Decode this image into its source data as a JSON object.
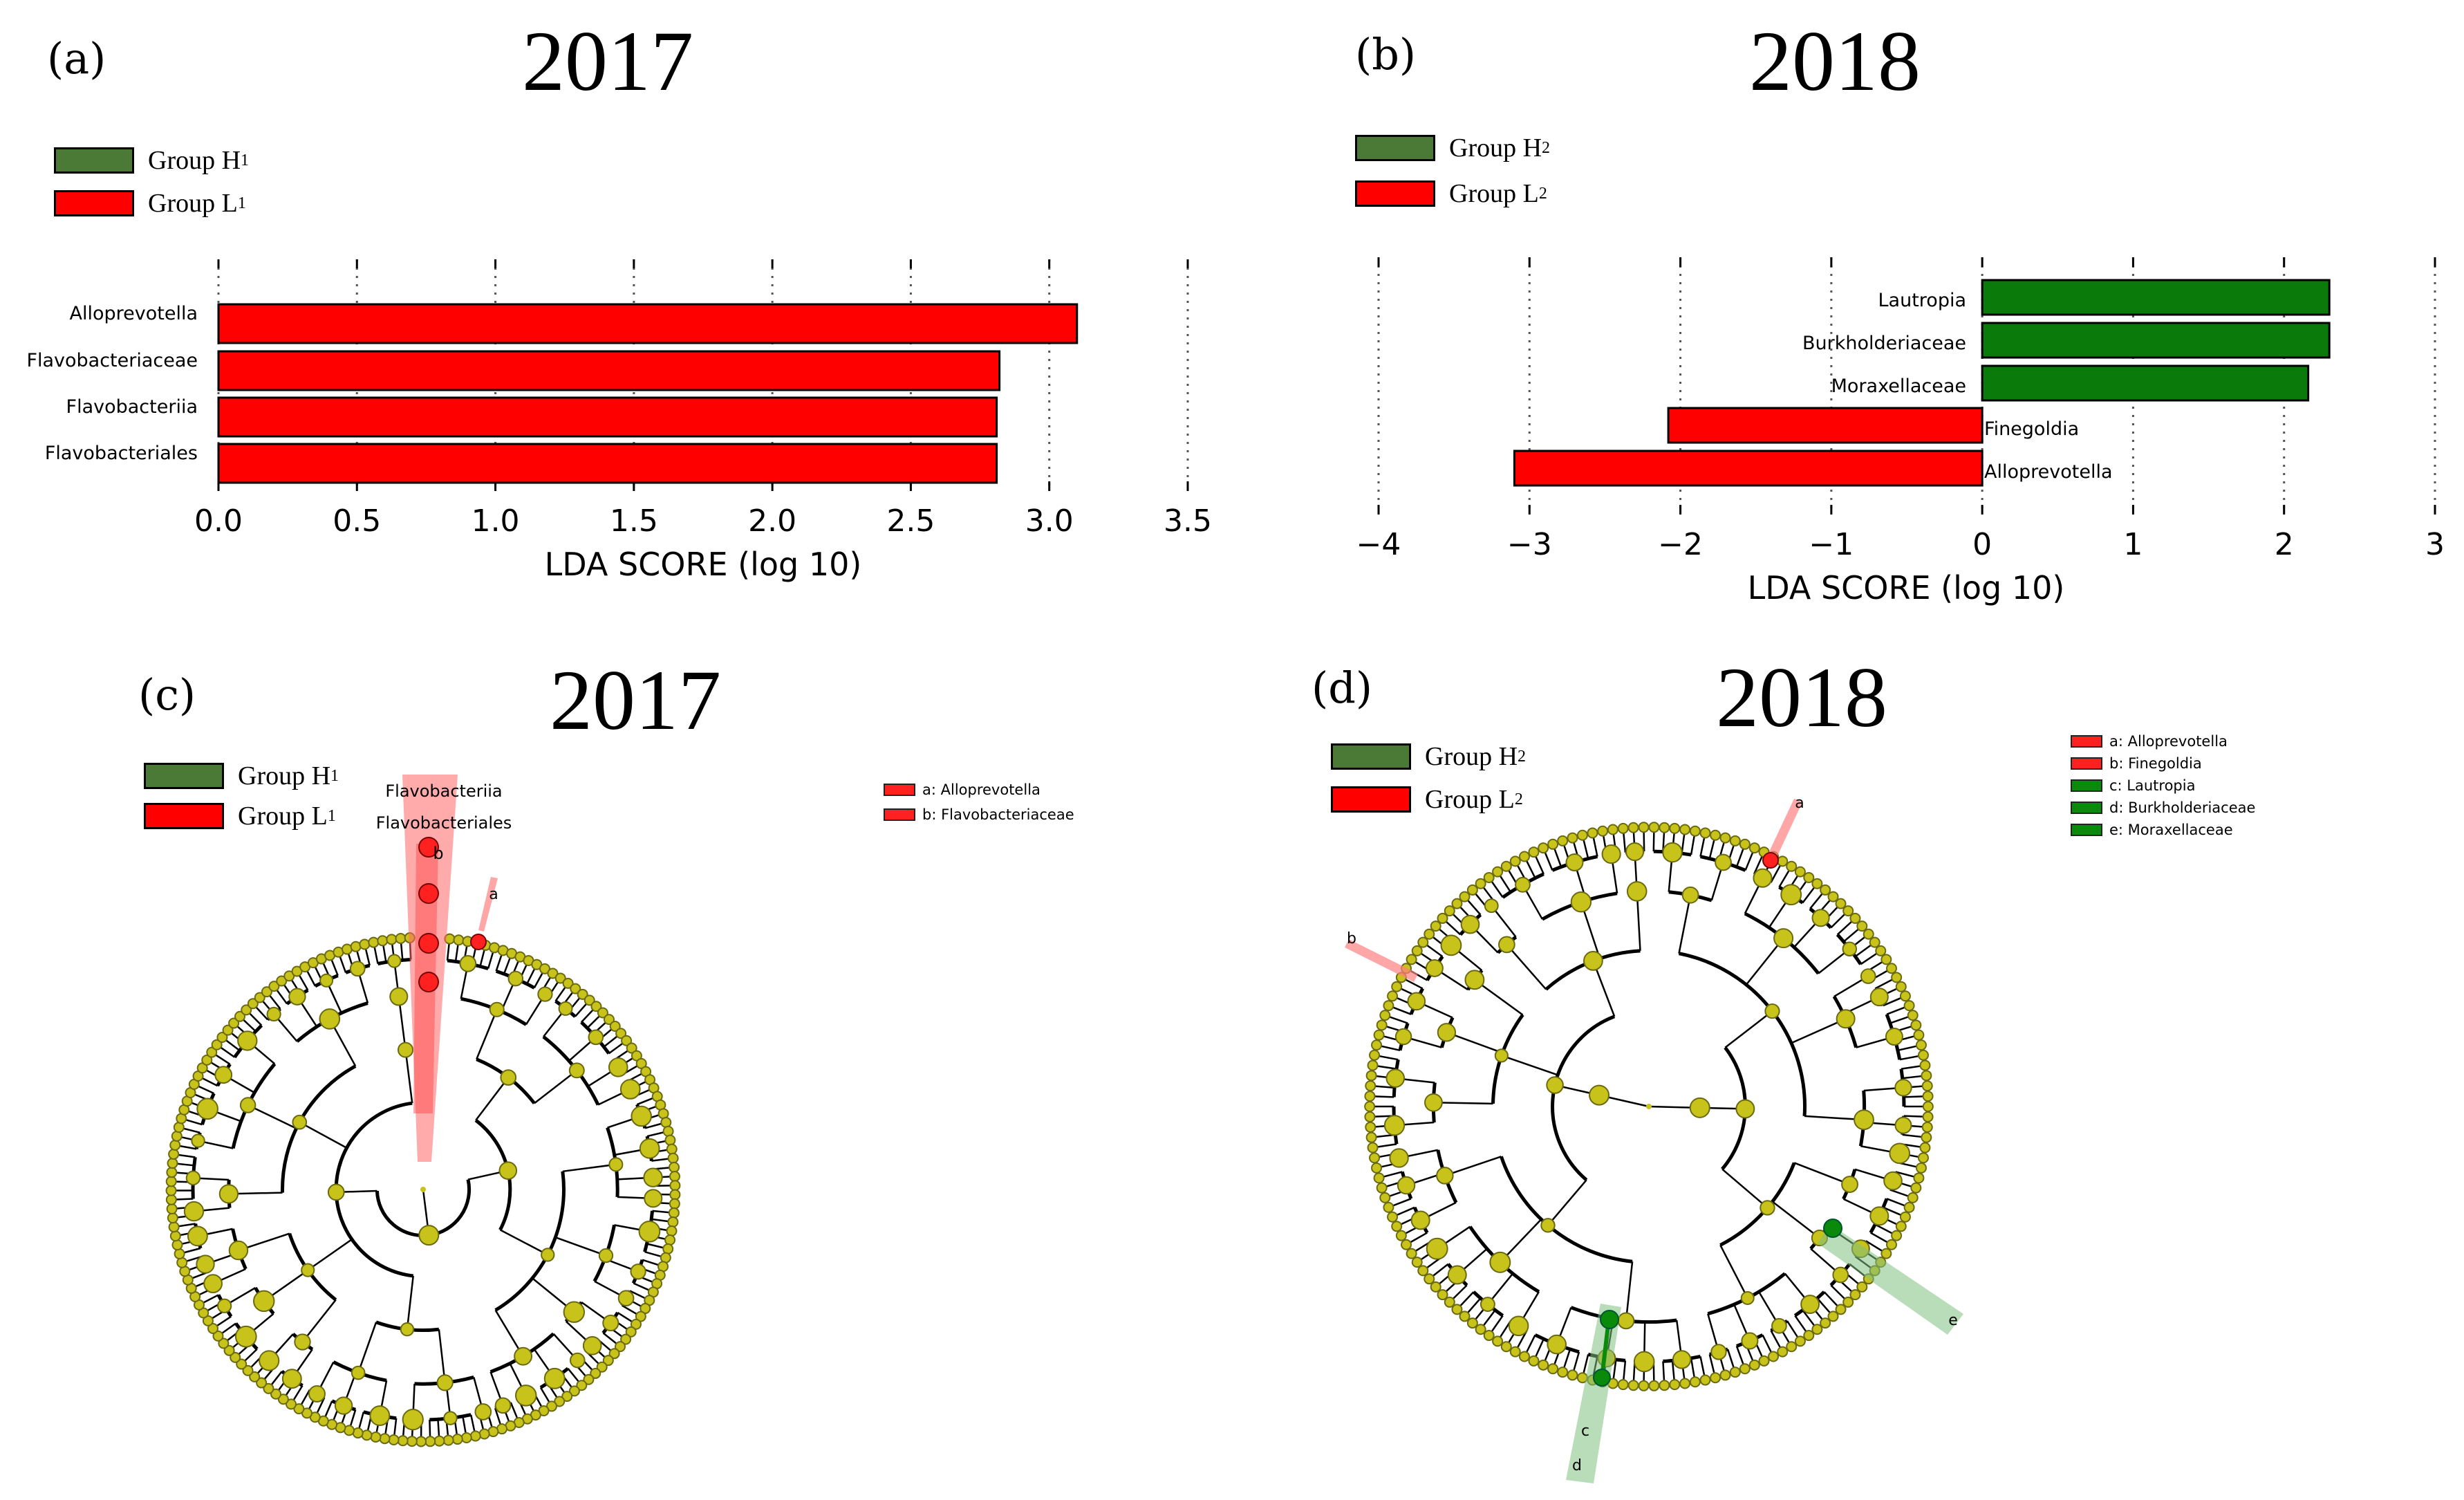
{
  "chart_data": [
    {
      "panel": "(a)",
      "title": "2017",
      "type": "bar",
      "orientation": "horizontal",
      "legend": [
        {
          "name": "Group H",
          "sub": "1",
          "color": "#4a7a35"
        },
        {
          "name": "Group L",
          "sub": "1",
          "color": "#ff0000"
        }
      ],
      "categories": [
        "Alloprevotella",
        "Flavobacteriaceae",
        "Flavobacteriia",
        "Flavobacteriales"
      ],
      "values": [
        3.1,
        2.82,
        2.81,
        2.81
      ],
      "bar_color": "#ff0000",
      "xlabel": "LDA SCORE (log 10)",
      "xlim": [
        0,
        3.5
      ],
      "ticks": [
        "0.0",
        "0.5",
        "1.0",
        "1.5",
        "2.0",
        "2.5",
        "3.0",
        "3.5"
      ],
      "tick_values": [
        0,
        0.5,
        1.0,
        1.5,
        2.0,
        2.5,
        3.0,
        3.5
      ],
      "grid": true
    },
    {
      "panel": "(b)",
      "title": "2018",
      "type": "bar",
      "orientation": "horizontal",
      "legend": [
        {
          "name": "Group H",
          "sub": "2",
          "color": "#4a7a35"
        },
        {
          "name": "Group L",
          "sub": "2",
          "color": "#ff0000"
        }
      ],
      "categories": [
        "Lautropia",
        "Burkholderiaceae",
        "Moraxellaceae",
        "Finegoldia",
        "Alloprevotella"
      ],
      "values": [
        2.3,
        2.3,
        2.16,
        -2.08,
        -3.1
      ],
      "colors": [
        "#0a7a0a",
        "#0a7a0a",
        "#0a7a0a",
        "#ff0000",
        "#ff0000"
      ],
      "xlabel": "LDA SCORE (log 10)",
      "xlim": [
        -4,
        3
      ],
      "ticks": [
        "−4",
        "−3",
        "−2",
        "−1",
        "0",
        "1",
        "2",
        "3"
      ],
      "tick_values": [
        -4,
        -3,
        -2,
        -1,
        0,
        1,
        2,
        3
      ],
      "grid": true
    },
    {
      "panel": "(c)",
      "title": "2017",
      "type": "cladogram",
      "legend": [
        {
          "name": "Group H",
          "sub": "1",
          "color": "#4a7a35"
        },
        {
          "name": "Group L",
          "sub": "1",
          "color": "#ff0000"
        }
      ],
      "key": [
        {
          "text": "a: Alloprevotella",
          "color": "#ff2020"
        },
        {
          "text": "b: Flavobacteriaceae",
          "color": "#ff2020"
        }
      ],
      "clade_labels": [
        "Flavobacteriia",
        "Flavobacteriales",
        "b",
        "a"
      ],
      "node_color": "#c8c31a"
    },
    {
      "panel": "(d)",
      "title": "2018",
      "type": "cladogram",
      "legend": [
        {
          "name": "Group H",
          "sub": "2",
          "color": "#4a7a35"
        },
        {
          "name": "Group L",
          "sub": "2",
          "color": "#ff0000"
        }
      ],
      "key": [
        {
          "text": "a: Alloprevotella",
          "color": "#ff2020"
        },
        {
          "text": "b: Finegoldia",
          "color": "#ff2020"
        },
        {
          "text": "c: Lautropia",
          "color": "#0a8a0a"
        },
        {
          "text": "d: Burkholderiaceae",
          "color": "#0a8a0a"
        },
        {
          "text": "e: Moraxellaceae",
          "color": "#0a8a0a"
        }
      ],
      "clade_labels": [
        "a",
        "b",
        "c",
        "d",
        "e"
      ],
      "node_color": "#c8c31a"
    }
  ]
}
